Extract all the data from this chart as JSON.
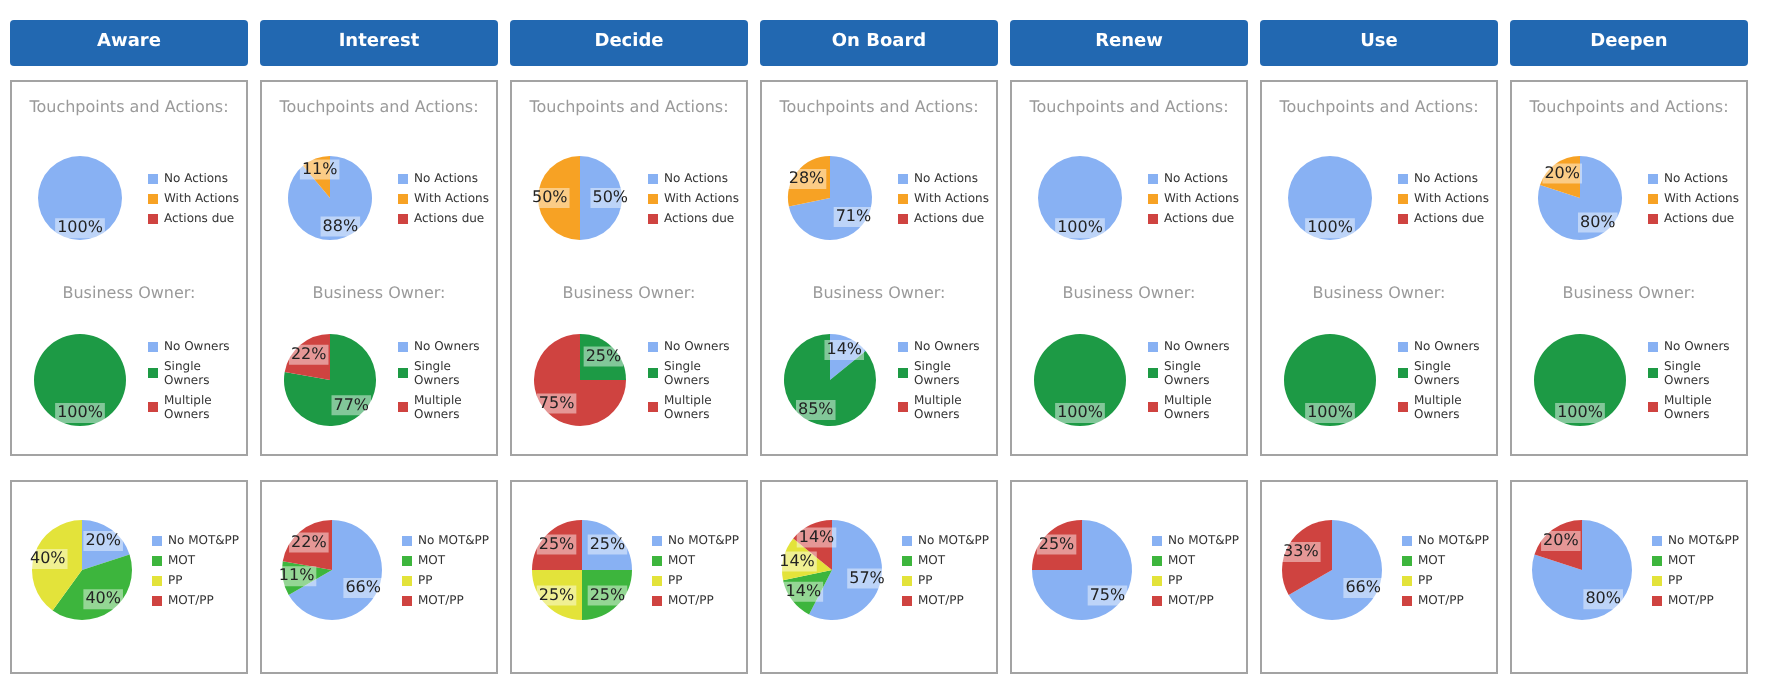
{
  "chart_data": [
    {
      "type": "pie",
      "title": "Aware",
      "subtitle": "Touchpoints and Actions:",
      "categories": [
        "No Actions",
        "With Actions",
        "Actions due"
      ],
      "values": [
        100,
        0,
        0
      ],
      "colors": [
        "#88b1f3",
        "#f7a224",
        "#cf4340"
      ],
      "value_labels": [
        "100%",
        null,
        null
      ],
      "legend": "right"
    },
    {
      "type": "pie",
      "title": "Business Owner:",
      "categories": [
        "No Owners",
        "Single Owners",
        "Multiple Owners"
      ],
      "values": [
        0,
        100,
        0
      ],
      "colors": [
        "#88b1f3",
        "#1d9a45",
        "#cf4340"
      ],
      "value_labels": [
        null,
        "100%",
        null
      ],
      "legend": "right"
    },
    {
      "type": "pie",
      "title": "Interest",
      "subtitle": "Touchpoints and Actions:",
      "categories": [
        "No Actions",
        "With Actions",
        "Actions due"
      ],
      "values": [
        88,
        11,
        0
      ],
      "colors": [
        "#88b1f3",
        "#f7a224",
        "#cf4340"
      ],
      "value_labels": [
        "88%",
        "11%",
        null
      ],
      "legend": "right"
    },
    {
      "type": "pie",
      "title": "Business Owner:",
      "categories": [
        "No Owners",
        "Single Owners",
        "Multiple Owners"
      ],
      "values": [
        0,
        77,
        22
      ],
      "colors": [
        "#88b1f3",
        "#1d9a45",
        "#cf4340"
      ],
      "value_labels": [
        null,
        "77%",
        "22%"
      ],
      "legend": "right"
    },
    {
      "type": "pie",
      "title": "Decide",
      "subtitle": "Touchpoints and Actions:",
      "categories": [
        "No Actions",
        "With Actions",
        "Actions due"
      ],
      "values": [
        50,
        50,
        0
      ],
      "colors": [
        "#88b1f3",
        "#f7a224",
        "#cf4340"
      ],
      "value_labels": [
        "50%",
        "50%",
        null
      ],
      "legend": "right"
    },
    {
      "type": "pie",
      "title": "Business Owner:",
      "categories": [
        "No Owners",
        "Single Owners",
        "Multiple Owners"
      ],
      "values": [
        0,
        25,
        75
      ],
      "colors": [
        "#88b1f3",
        "#1d9a45",
        "#cf4340"
      ],
      "value_labels": [
        null,
        "25%",
        "75%"
      ],
      "legend": "right"
    },
    {
      "type": "pie",
      "title": "On Board",
      "subtitle": "Touchpoints and Actions:",
      "categories": [
        "No Actions",
        "With Actions",
        "Actions due"
      ],
      "values": [
        71,
        28,
        0
      ],
      "colors": [
        "#88b1f3",
        "#f7a224",
        "#cf4340"
      ],
      "value_labels": [
        "71%",
        "28%",
        null
      ],
      "legend": "right"
    },
    {
      "type": "pie",
      "title": "Business Owner:",
      "categories": [
        "No Owners",
        "Single Owners",
        "Multiple Owners"
      ],
      "values": [
        14,
        85,
        0
      ],
      "colors": [
        "#88b1f3",
        "#1d9a45",
        "#cf4340"
      ],
      "value_labels": [
        "14%",
        "85%",
        null
      ],
      "legend": "right"
    },
    {
      "type": "pie",
      "title": "Renew",
      "subtitle": "Touchpoints and Actions:",
      "categories": [
        "No Actions",
        "With Actions",
        "Actions due"
      ],
      "values": [
        100,
        0,
        0
      ],
      "colors": [
        "#88b1f3",
        "#f7a224",
        "#cf4340"
      ],
      "value_labels": [
        "100%",
        null,
        null
      ],
      "legend": "right"
    },
    {
      "type": "pie",
      "title": "Business Owner:",
      "categories": [
        "No Owners",
        "Single Owners",
        "Multiple Owners"
      ],
      "values": [
        0,
        100,
        0
      ],
      "colors": [
        "#88b1f3",
        "#1d9a45",
        "#cf4340"
      ],
      "value_labels": [
        null,
        "100%",
        null
      ],
      "legend": "right"
    },
    {
      "type": "pie",
      "title": "Use",
      "subtitle": "Touchpoints and Actions:",
      "categories": [
        "No Actions",
        "With Actions",
        "Actions due"
      ],
      "values": [
        100,
        0,
        0
      ],
      "colors": [
        "#88b1f3",
        "#f7a224",
        "#cf4340"
      ],
      "value_labels": [
        "100%",
        null,
        null
      ],
      "legend": "right"
    },
    {
      "type": "pie",
      "title": "Business Owner:",
      "categories": [
        "No Owners",
        "Single Owners",
        "Multiple Owners"
      ],
      "values": [
        0,
        100,
        0
      ],
      "colors": [
        "#88b1f3",
        "#1d9a45",
        "#cf4340"
      ],
      "value_labels": [
        null,
        "100%",
        null
      ],
      "legend": "right"
    },
    {
      "type": "pie",
      "title": "Deepen",
      "subtitle": "Touchpoints and Actions:",
      "categories": [
        "No Actions",
        "With Actions",
        "Actions due"
      ],
      "values": [
        80,
        20,
        0
      ],
      "colors": [
        "#88b1f3",
        "#f7a224",
        "#cf4340"
      ],
      "value_labels": [
        "80%",
        "20%",
        null
      ],
      "legend": "right"
    },
    {
      "type": "pie",
      "title": "Business Owner:",
      "categories": [
        "No Owners",
        "Single Owners",
        "Multiple Owners"
      ],
      "values": [
        0,
        100,
        0
      ],
      "colors": [
        "#88b1f3",
        "#1d9a45",
        "#cf4340"
      ],
      "value_labels": [
        null,
        "100%",
        null
      ],
      "legend": "right"
    },
    {
      "type": "pie",
      "categories": [
        "No MOT&PP",
        "MOT",
        "PP",
        "MOT/PP"
      ],
      "values": [
        20,
        40,
        40,
        0
      ],
      "colors": [
        "#88b1f3",
        "#3db53d",
        "#e3e33a",
        "#cf4340"
      ],
      "value_labels": [
        "20%",
        "40%",
        "40%",
        null
      ],
      "legend": "right"
    },
    {
      "type": "pie",
      "categories": [
        "No MOT&PP",
        "MOT",
        "PP",
        "MOT/PP"
      ],
      "values": [
        66,
        11,
        0,
        22
      ],
      "colors": [
        "#88b1f3",
        "#3db53d",
        "#e3e33a",
        "#cf4340"
      ],
      "value_labels": [
        "66%",
        "11%",
        null,
        "22%"
      ],
      "legend": "right"
    },
    {
      "type": "pie",
      "categories": [
        "No MOT&PP",
        "MOT",
        "PP",
        "MOT/PP"
      ],
      "values": [
        25,
        25,
        25,
        25
      ],
      "colors": [
        "#88b1f3",
        "#3db53d",
        "#e3e33a",
        "#cf4340"
      ],
      "value_labels": [
        "25%",
        "25%",
        "25%",
        "25%"
      ],
      "legend": "right"
    },
    {
      "type": "pie",
      "categories": [
        "No MOT&PP",
        "MOT",
        "PP",
        "MOT/PP"
      ],
      "values": [
        57,
        14,
        14,
        14
      ],
      "colors": [
        "#88b1f3",
        "#3db53d",
        "#e3e33a",
        "#cf4340"
      ],
      "value_labels": [
        "57%",
        "14%",
        "14%",
        "14%"
      ],
      "legend": "right"
    },
    {
      "type": "pie",
      "categories": [
        "No MOT&PP",
        "MOT",
        "PP",
        "MOT/PP"
      ],
      "values": [
        75,
        0,
        0,
        25
      ],
      "colors": [
        "#88b1f3",
        "#3db53d",
        "#e3e33a",
        "#cf4340"
      ],
      "value_labels": [
        "75%",
        null,
        null,
        "25%"
      ],
      "legend": "right"
    },
    {
      "type": "pie",
      "categories": [
        "No MOT&PP",
        "MOT",
        "PP",
        "MOT/PP"
      ],
      "values": [
        66,
        0,
        0,
        33
      ],
      "colors": [
        "#88b1f3",
        "#3db53d",
        "#e3e33a",
        "#cf4340"
      ],
      "value_labels": [
        "66%",
        null,
        null,
        "33%"
      ],
      "legend": "right"
    },
    {
      "type": "pie",
      "categories": [
        "No MOT&PP",
        "MOT",
        "PP",
        "MOT/PP"
      ],
      "values": [
        80,
        0,
        0,
        20
      ],
      "colors": [
        "#88b1f3",
        "#3db53d",
        "#e3e33a",
        "#cf4340"
      ],
      "value_labels": [
        "80%",
        null,
        null,
        "20%"
      ],
      "legend": "right"
    }
  ]
}
